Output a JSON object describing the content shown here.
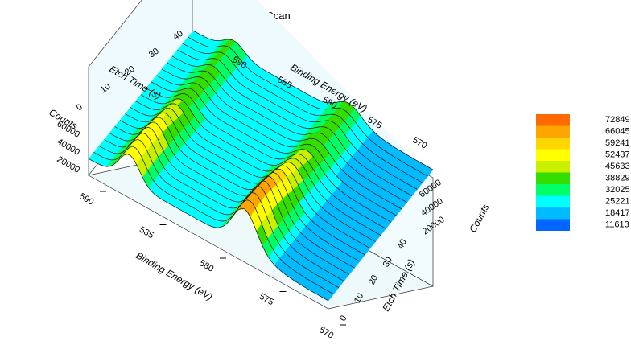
{
  "chart_data": {
    "type": "surface",
    "title": "Cr2p Scan",
    "x_axis": {
      "label": "Binding Energy (eV)",
      "ticks": [
        "590",
        "585",
        "580",
        "575",
        "570"
      ],
      "range": [
        590,
        570
      ]
    },
    "y_axis": {
      "label": "Etch Time (s)",
      "ticks": [
        "0",
        "10",
        "20",
        "30",
        "40"
      ],
      "range": [
        0,
        40
      ]
    },
    "z_axis": {
      "label": "Counts",
      "ticks": [
        "20000",
        "40000",
        "60000"
      ],
      "range": [
        11613,
        72849
      ]
    },
    "back_x_ticks": [
      "590",
      "585",
      "580",
      "575",
      "570"
    ],
    "back_y_ticks": [
      "0",
      "10",
      "20",
      "30",
      "40"
    ],
    "back_y_label": "Etch Time (s)",
    "back_x_label": "Binding Energy (eV)",
    "back_z_label": "Counts",
    "back_z_ticks": [
      "20000",
      "40000",
      "60000"
    ],
    "legend": {
      "placement": "right",
      "levels": [
        "72849",
        "66045",
        "59241",
        "52437",
        "45633",
        "38829",
        "32025",
        "25221",
        "18417",
        "11613"
      ],
      "colors": [
        "#ff6a00",
        "#ffa500",
        "#ffd700",
        "#ffff00",
        "#c8f000",
        "#33dd00",
        "#00ff66",
        "#00ffff",
        "#00bbff",
        "#0066ff"
      ]
    },
    "peaks": [
      {
        "binding_energy": 586.5,
        "etch_time_peak": 5,
        "max_counts": 72849
      },
      {
        "binding_energy": 577.0,
        "etch_time_peak": 5,
        "max_counts": 72849
      }
    ],
    "series_profile_note": ""
  }
}
